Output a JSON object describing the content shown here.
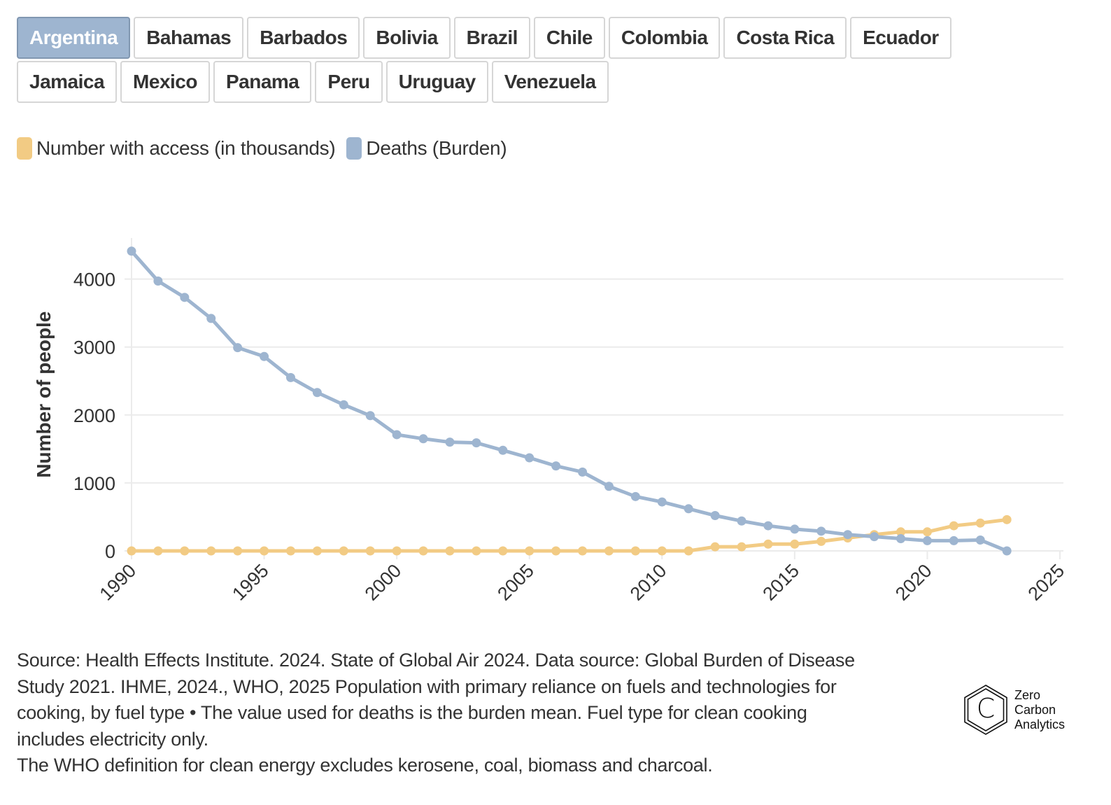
{
  "tabs": {
    "row1": [
      "Argentina",
      "Bahamas",
      "Barbados",
      "Bolivia",
      "Brazil",
      "Chile",
      "Colombia",
      "Costa Rica",
      "Ecuador"
    ],
    "row2": [
      "Jamaica",
      "Mexico",
      "Panama",
      "Peru",
      "Uruguay",
      "Venezuela"
    ],
    "selected": "Argentina"
  },
  "colors": {
    "access": "#f2cb84",
    "deaths": "#9eb5d0",
    "active_tab": "#9eb5d0",
    "grid": "#ebebeb"
  },
  "chart_data": {
    "type": "line",
    "title": "",
    "xlabel": "",
    "ylabel": "Number of people",
    "xlim": [
      1990,
      2025
    ],
    "ylim": [
      0,
      4500
    ],
    "x_ticks": [
      "1990",
      "1995",
      "2000",
      "2005",
      "2010",
      "2015",
      "2020",
      "2025"
    ],
    "y_ticks": [
      "0",
      "1000",
      "2000",
      "3000",
      "4000"
    ],
    "grid": true,
    "legend_position": "top-left",
    "x": [
      1990,
      1991,
      1992,
      1993,
      1994,
      1995,
      1996,
      1997,
      1998,
      1999,
      2000,
      2001,
      2002,
      2003,
      2004,
      2005,
      2006,
      2007,
      2008,
      2009,
      2010,
      2011,
      2012,
      2013,
      2014,
      2015,
      2016,
      2017,
      2018,
      2019,
      2020,
      2021,
      2022,
      2023
    ],
    "series": [
      {
        "name": "Number with access (in thousands)",
        "color": "#f2cb84",
        "values": [
          0,
          0,
          0,
          0,
          0,
          0,
          0,
          0,
          0,
          0,
          0,
          0,
          0,
          0,
          0,
          0,
          0,
          0,
          0,
          0,
          0,
          0,
          60,
          60,
          100,
          100,
          140,
          190,
          240,
          280,
          280,
          370,
          410,
          460
        ]
      },
      {
        "name": "Deaths (Burden)",
        "color": "#9eb5d0",
        "values": [
          4410,
          3970,
          3730,
          3420,
          2990,
          2860,
          2550,
          2330,
          2150,
          1990,
          1710,
          1650,
          1600,
          1590,
          1480,
          1370,
          1250,
          1160,
          950,
          800,
          720,
          620,
          520,
          440,
          370,
          320,
          290,
          240,
          210,
          180,
          150,
          150,
          160,
          0
        ]
      }
    ]
  },
  "footer": {
    "line1": "Source: Health Effects Institute. 2024. State of Global Air 2024. Data source: Global Burden of Disease",
    "line2": "Study 2021. IHME, 2024., WHO, 2025 Population with primary reliance on fuels and technologies for",
    "line3": "cooking, by fuel type • The value used for deaths is the burden mean. Fuel type for clean cooking",
    "line4": "includes electricity only.",
    "line5": "The WHO definition for clean energy excludes kerosene, coal, biomass and charcoal."
  },
  "logo": {
    "icon_letter": "C",
    "line1": "Zero",
    "line2": "Carbon",
    "line3": "Analytics"
  }
}
